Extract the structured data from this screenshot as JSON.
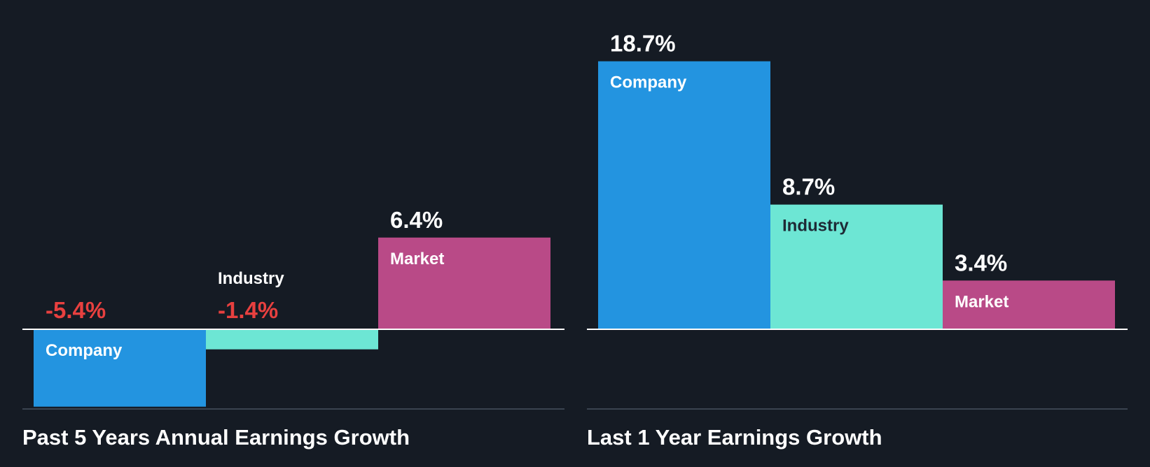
{
  "colors": {
    "background": "#151b24",
    "company": "#2394e0",
    "industry": "#6de6d4",
    "market": "#b94a87",
    "positive_text": "#ffffff",
    "negative_text": "#e8403f",
    "dark_label": "#1e2a36",
    "baseline": "#ffffff",
    "bottom_rule": "#3a4350"
  },
  "chart_data": [
    {
      "type": "bar",
      "title": "Past 5 Years Annual Earnings Growth",
      "categories": [
        "Company",
        "Industry",
        "Market"
      ],
      "values": [
        -5.4,
        -1.4,
        6.4
      ],
      "value_labels": [
        "-5.4%",
        "-1.4%",
        "6.4%"
      ],
      "ylim": [
        -5.5,
        18.7
      ]
    },
    {
      "type": "bar",
      "title": "Last 1 Year Earnings Growth",
      "categories": [
        "Company",
        "Industry",
        "Market"
      ],
      "values": [
        18.7,
        8.7,
        3.4
      ],
      "value_labels": [
        "18.7%",
        "8.7%",
        "3.4%"
      ],
      "ylim": [
        -5.5,
        18.7
      ]
    }
  ]
}
